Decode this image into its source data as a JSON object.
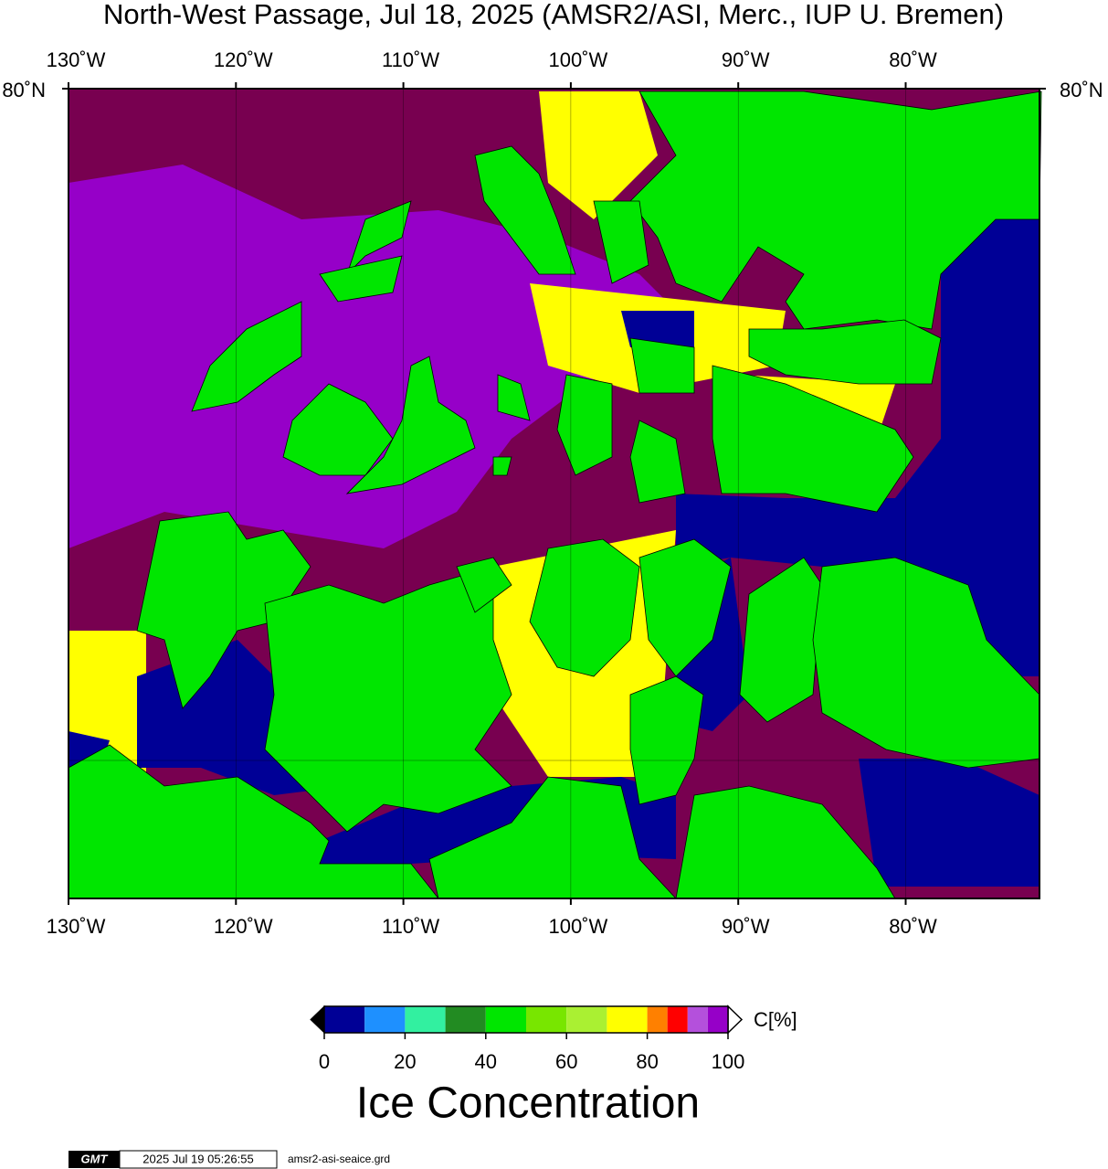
{
  "title": "North-West Passage, Jul 18, 2025 (AMSR2/ASI, Merc., IUP U. Bremen)",
  "map": {
    "lon_labels": [
      "130˚W",
      "120˚W",
      "110˚W",
      "100˚W",
      "90˚W",
      "80˚W"
    ],
    "lat_labels": [
      "80˚N"
    ]
  },
  "colorbar": {
    "levels": [
      0,
      10,
      20,
      30,
      40,
      50,
      60,
      70,
      80,
      85,
      90,
      95,
      100
    ],
    "colors": [
      "#000096",
      "#1e90ff",
      "#32f0a0",
      "#228b22",
      "#00e600",
      "#78e600",
      "#aaf032",
      "#ffff00",
      "#ff8000",
      "#ff0000",
      "#b450dc",
      "#9600c8"
    ],
    "ticks": [
      0,
      20,
      40,
      60,
      80,
      100
    ],
    "unit": "C[%]",
    "label": "Ice Concentration"
  },
  "footer": {
    "logo": "GMT",
    "timestamp": "2025 Jul 19 05:26:55",
    "file": "amsr2-asi-seaice.grd"
  }
}
